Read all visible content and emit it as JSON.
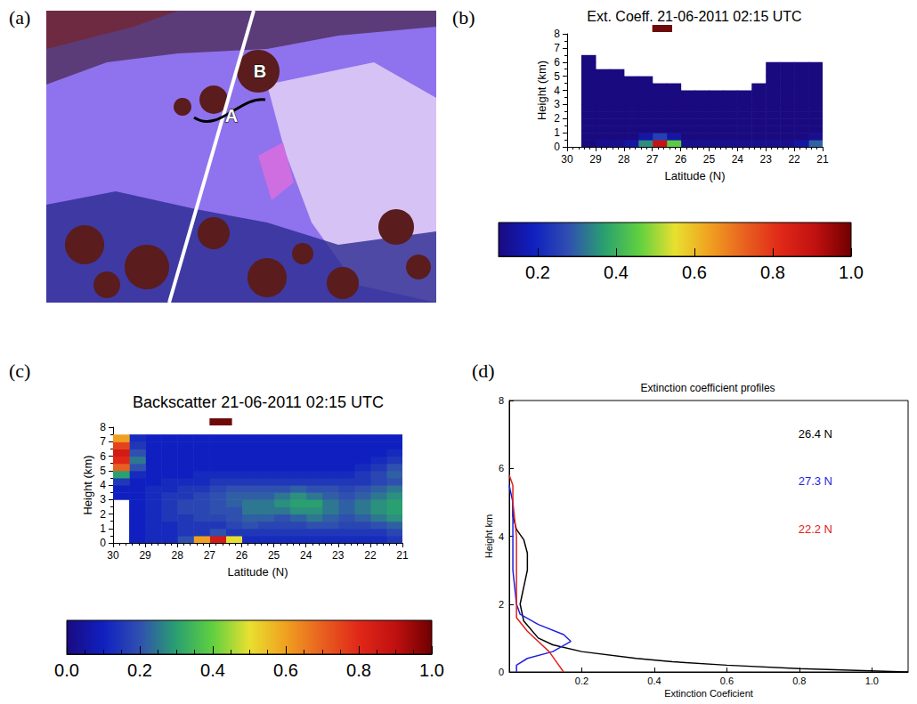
{
  "chart_data": [
    {
      "type": "image",
      "panel": "(a)",
      "labels": [
        "A",
        "B"
      ]
    },
    {
      "type": "heatmap",
      "panel": "(b)",
      "title": "Ext. Coeff. 21-06-2011 02:15 UTC",
      "x_label": "Latitude (N)",
      "y_label": "Height (km)",
      "xlim": [
        30,
        21
      ],
      "xticks": [
        21,
        22,
        23,
        24,
        25,
        26,
        27,
        28,
        29,
        30
      ],
      "ylim": [
        0,
        8
      ],
      "yticks": [
        0,
        1,
        2,
        3,
        4,
        5,
        6,
        7,
        8
      ],
      "lat_edges": [
        21,
        21.5,
        22,
        22.5,
        23,
        23.5,
        24,
        24.5,
        25,
        25.5,
        26,
        26.5,
        27,
        27.5,
        28,
        28.5,
        29,
        29.5,
        30
      ],
      "height_edges": [
        0,
        0.5,
        1,
        1.5,
        2,
        2.5,
        3,
        3.5,
        4,
        4.5,
        5,
        5.5,
        6,
        6.5
      ],
      "z": [
        [
          0.3,
          0.15,
          0.12,
          0.12,
          0.12,
          0.12,
          0.12,
          0.12,
          0.12,
          0.12,
          0.45,
          0.9,
          0.35,
          0.15,
          0.12,
          0.12,
          0.1,
          null
        ],
        [
          0.12,
          0.1,
          0.1,
          0.1,
          0.1,
          0.1,
          0.1,
          0.1,
          0.1,
          0.1,
          0.15,
          0.25,
          0.15,
          0.1,
          0.1,
          0.1,
          0.08,
          null
        ],
        [
          0.08,
          0.08,
          0.08,
          0.08,
          0.08,
          0.08,
          0.08,
          0.08,
          0.08,
          0.08,
          0.08,
          0.08,
          0.08,
          0.08,
          0.08,
          0.08,
          0.08,
          null
        ],
        [
          0.08,
          0.08,
          0.08,
          0.08,
          0.08,
          0.08,
          0.08,
          0.08,
          0.08,
          0.08,
          0.08,
          0.08,
          0.08,
          0.08,
          0.08,
          0.08,
          0.08,
          null
        ],
        [
          0.07,
          0.07,
          0.07,
          0.07,
          0.07,
          0.07,
          0.07,
          0.07,
          0.07,
          0.07,
          0.07,
          0.07,
          0.07,
          0.07,
          0.07,
          0.07,
          0.07,
          null
        ],
        [
          0.07,
          0.07,
          0.07,
          0.07,
          0.07,
          0.07,
          0.07,
          0.07,
          0.07,
          0.07,
          0.07,
          0.07,
          0.07,
          0.07,
          0.07,
          0.07,
          0.07,
          null
        ],
        [
          0.07,
          0.07,
          0.07,
          0.07,
          0.07,
          0.07,
          0.07,
          0.07,
          0.07,
          0.07,
          0.07,
          0.07,
          0.07,
          0.07,
          0.07,
          0.07,
          0.07,
          null
        ],
        [
          0.07,
          0.07,
          0.07,
          0.07,
          0.07,
          0.07,
          0.07,
          0.07,
          0.07,
          0.07,
          0.07,
          0.07,
          0.07,
          0.07,
          0.07,
          0.07,
          0.07,
          null
        ],
        [
          0.06,
          0.06,
          0.06,
          0.06,
          0.06,
          null,
          null,
          null,
          null,
          null,
          0.06,
          0.06,
          0.06,
          0.06,
          0.06,
          0.06,
          0.06,
          null
        ],
        [
          0.05,
          0.05,
          0.05,
          0.05,
          null,
          null,
          null,
          null,
          null,
          null,
          null,
          null,
          0.05,
          0.05,
          0.05,
          0.05,
          0.05,
          null
        ],
        [
          0.05,
          0.05,
          0.05,
          0.05,
          null,
          null,
          null,
          null,
          null,
          null,
          null,
          null,
          null,
          null,
          0.05,
          0.05,
          0.05,
          null
        ],
        [
          0.05,
          0.05,
          0.05,
          0.05,
          null,
          null,
          null,
          null,
          null,
          null,
          null,
          null,
          null,
          null,
          null,
          null,
          0.05,
          null
        ],
        [
          null,
          null,
          null,
          null,
          null,
          null,
          null,
          null,
          null,
          null,
          null,
          null,
          null,
          null,
          null,
          null,
          0.05,
          null
        ]
      ],
      "marked_range": [
        26.3,
        27
      ],
      "colorbar_range": [
        0.1,
        1
      ],
      "colorbar_ticks": [
        0.2,
        0.4,
        0.6,
        0.8,
        {
          "value": 1,
          "label": "1.0"
        }
      ]
    },
    {
      "type": "heatmap",
      "panel": "(c)",
      "title": "Backscatter 21-06-2011 02:15 UTC",
      "x_label": "Latitude (N)",
      "y_label": "Height (km)",
      "xlim": [
        30,
        21
      ],
      "xticks": [
        21,
        22,
        23,
        24,
        25,
        26,
        27,
        28,
        29,
        30
      ],
      "ylim": [
        0,
        8
      ],
      "yticks": [
        0,
        1,
        2,
        3,
        4,
        5,
        6,
        7,
        8
      ],
      "lat_edges": [
        21,
        21.5,
        22,
        22.5,
        23,
        23.5,
        24,
        24.5,
        25,
        25.5,
        26,
        26.5,
        27,
        27.5,
        28,
        28.5,
        29,
        29.5,
        30
      ],
      "height_edges": [
        0,
        0.5,
        1,
        1.5,
        2,
        2.5,
        3,
        3.5,
        4,
        4.5,
        5,
        5.5,
        6,
        6.5,
        7,
        7.5
      ],
      "z": [
        [
          0.15,
          0.12,
          0.12,
          0.12,
          0.12,
          0.12,
          0.12,
          0.12,
          0.12,
          0.12,
          0.5,
          0.85,
          0.6,
          0.2,
          0.12,
          0.12,
          0.1,
          null
        ],
        [
          0.18,
          0.15,
          0.15,
          0.15,
          0.15,
          0.15,
          0.15,
          0.15,
          0.15,
          0.15,
          0.15,
          0.2,
          0.15,
          0.15,
          0.12,
          0.12,
          0.1,
          null
        ],
        [
          0.22,
          0.2,
          0.18,
          0.18,
          0.2,
          0.2,
          0.18,
          0.18,
          0.18,
          0.2,
          0.18,
          0.15,
          0.15,
          0.15,
          0.12,
          0.12,
          0.1,
          null
        ],
        [
          0.28,
          0.25,
          0.22,
          0.2,
          0.22,
          0.25,
          0.22,
          0.2,
          0.22,
          0.22,
          0.2,
          0.18,
          0.18,
          0.15,
          0.15,
          0.12,
          0.1,
          null
        ],
        [
          0.3,
          0.28,
          0.25,
          0.22,
          0.25,
          0.28,
          0.28,
          0.25,
          0.25,
          0.25,
          0.2,
          0.2,
          0.18,
          0.18,
          0.15,
          0.12,
          0.1,
          null
        ],
        [
          0.3,
          0.28,
          0.25,
          0.22,
          0.25,
          0.3,
          0.3,
          0.28,
          0.25,
          0.25,
          0.22,
          0.2,
          0.18,
          0.18,
          0.15,
          0.12,
          0.1,
          null
        ],
        [
          0.28,
          0.25,
          0.22,
          0.2,
          0.22,
          0.25,
          0.28,
          0.25,
          0.22,
          0.22,
          0.22,
          0.2,
          0.18,
          0.15,
          0.15,
          0.12,
          0.1,
          0.1
        ],
        [
          0.25,
          0.22,
          0.2,
          0.18,
          0.2,
          0.2,
          0.22,
          0.2,
          0.2,
          0.2,
          0.2,
          0.18,
          0.15,
          0.15,
          0.12,
          0.12,
          0.1,
          0.1
        ],
        [
          0.2,
          0.18,
          0.15,
          0.15,
          0.15,
          0.15,
          0.15,
          0.15,
          0.15,
          0.15,
          0.15,
          0.15,
          0.12,
          0.12,
          0.12,
          0.1,
          0.1,
          0.15
        ],
        [
          0.22,
          0.18,
          0.15,
          0.12,
          0.12,
          0.12,
          0.12,
          0.12,
          0.12,
          0.12,
          0.12,
          0.12,
          0.12,
          0.1,
          0.1,
          0.1,
          0.12,
          0.3
        ],
        [
          0.2,
          0.15,
          0.12,
          0.1,
          0.1,
          0.1,
          0.1,
          0.1,
          0.1,
          0.1,
          0.1,
          0.1,
          0.1,
          0.1,
          0.1,
          0.1,
          0.2,
          0.7
        ],
        [
          0.15,
          0.12,
          0.1,
          0.1,
          0.1,
          0.1,
          0.1,
          0.1,
          0.1,
          0.1,
          0.1,
          0.1,
          0.1,
          0.1,
          0.1,
          0.1,
          0.25,
          0.8
        ],
        [
          0.12,
          0.1,
          0.1,
          0.1,
          0.1,
          0.1,
          0.1,
          0.1,
          0.1,
          0.1,
          0.1,
          0.1,
          0.1,
          0.1,
          0.1,
          0.1,
          0.2,
          0.85
        ],
        [
          0.1,
          0.1,
          0.1,
          0.1,
          0.1,
          0.1,
          0.1,
          0.1,
          0.1,
          0.1,
          0.1,
          0.1,
          0.1,
          0.1,
          0.1,
          0.1,
          0.15,
          0.75
        ],
        [
          0.1,
          0.1,
          0.1,
          0.1,
          0.1,
          0.1,
          0.1,
          0.1,
          0.1,
          0.1,
          0.1,
          0.1,
          0.1,
          0.1,
          0.1,
          0.1,
          0.12,
          0.6
        ]
      ],
      "marked_range": [
        26.3,
        27
      ],
      "colorbar_range": [
        0,
        1
      ],
      "colorbar_ticks": [
        {
          "value": 0,
          "label": "0.0"
        },
        0.2,
        0.4,
        0.6,
        0.8,
        {
          "value": 1,
          "label": "1.0"
        }
      ]
    },
    {
      "type": "line",
      "panel": "(d)",
      "title": "Extinction coefficient profiles",
      "x_label": "Extinction Coeficient",
      "y_label": "Height km",
      "xlim": [
        0,
        1.1
      ],
      "xticks": [
        0.2,
        0.4,
        0.6,
        0.8,
        {
          "value": 1,
          "label": "1.0"
        }
      ],
      "ylim": [
        0,
        8
      ],
      "yticks": [
        0,
        2,
        4,
        6,
        8
      ],
      "legend": "upper right",
      "series": [
        {
          "name": "26.4 N",
          "color": "#000000",
          "x": [
            1.1,
            0.8,
            0.6,
            0.45,
            0.35,
            0.2,
            0.12,
            0.08,
            0.04,
            0.03,
            0.04,
            0.05,
            0.05,
            0.04,
            0.02,
            0.01,
            0.01
          ],
          "y": [
            0,
            0.1,
            0.2,
            0.3,
            0.4,
            0.6,
            0.8,
            1.0,
            1.5,
            2.0,
            2.5,
            3.0,
            3.5,
            3.9,
            4.2,
            4.6,
            5.0
          ]
        },
        {
          "name": "27.3 N",
          "color": "#1f1fe0",
          "x": [
            0.02,
            0.02,
            0.05,
            0.12,
            0.17,
            0.15,
            0.08,
            0.03,
            0.02,
            0.01,
            0.01,
            0.01,
            0
          ],
          "y": [
            0,
            0.2,
            0.4,
            0.6,
            0.9,
            1.1,
            1.4,
            1.7,
            2.0,
            3.0,
            4.0,
            5.0,
            5.5
          ]
        },
        {
          "name": "22.2 N",
          "color": "#e02020",
          "x": [
            0.15,
            0.13,
            0.11,
            0.08,
            0.05,
            0.02,
            0.02,
            0.02,
            0.02,
            0.01,
            0.01,
            0
          ],
          "y": [
            0,
            0.3,
            0.6,
            0.9,
            1.2,
            1.6,
            2,
            3,
            4,
            5,
            5.5,
            5.8
          ]
        }
      ]
    }
  ]
}
